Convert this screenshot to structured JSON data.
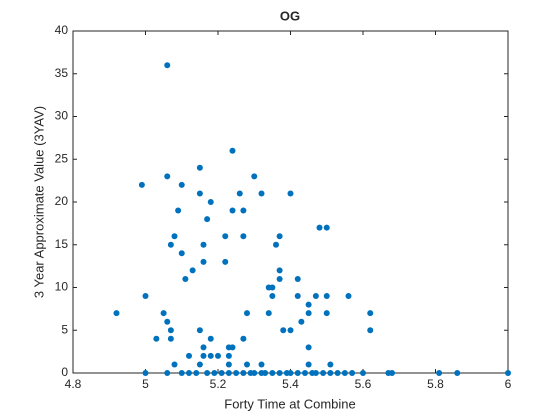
{
  "chart_data": {
    "type": "scatter",
    "title": "OG",
    "x_label": "Forty Time at Combine",
    "y_label": "3 Year Approximate Value (3YAV)",
    "color": "#0072bd",
    "xlim": [
      4.8,
      6
    ],
    "xticks": [
      4.8,
      5,
      5.2,
      5.4,
      5.6,
      5.8,
      6
    ],
    "ylim": [
      0,
      40
    ],
    "yticks": [
      0,
      5,
      10,
      15,
      20,
      25,
      30,
      35,
      40
    ],
    "x": [
      4.92,
      4.99,
      5.0,
      5.03,
      5.05,
      5.06,
      5.06,
      5.06,
      5.07,
      5.07,
      5.08,
      5.09,
      5.08,
      5.07,
      5.1,
      5.1,
      5.11,
      5.12,
      5.13,
      5.15,
      5.15,
      5.15,
      5.15,
      5.16,
      5.16,
      5.16,
      5.16,
      5.17,
      5.18,
      5.18,
      5.18,
      5.2,
      5.22,
      5.22,
      5.23,
      5.23,
      5.23,
      5.24,
      5.24,
      5.24,
      5.26,
      5.27,
      5.27,
      5.27,
      5.28,
      5.28,
      5.3,
      5.32,
      5.32,
      5.34,
      5.34,
      5.35,
      5.35,
      5.36,
      5.37,
      5.37,
      5.38,
      5.37,
      5.4,
      5.4,
      5.42,
      5.42,
      5.43,
      5.45,
      5.45,
      5.45,
      5.45,
      5.47,
      5.48,
      5.5,
      5.5,
      5.5,
      5.51,
      5.56,
      5.62,
      5.62,
      5.0,
      5.06,
      5.1,
      5.12,
      5.14,
      5.17,
      5.19,
      5.21,
      5.23,
      5.25,
      5.27,
      5.29,
      5.3,
      5.32,
      5.33,
      5.35,
      5.37,
      5.39,
      5.4,
      5.42,
      5.44,
      5.46,
      5.47,
      5.49,
      5.51,
      5.53,
      5.55,
      5.57,
      5.6,
      5.67,
      5.68,
      5.81,
      5.86,
      6.0
    ],
    "values": [
      7,
      22,
      9,
      4,
      7,
      36,
      6,
      23,
      5,
      15,
      16,
      19,
      1,
      4,
      22,
      14,
      11,
      2,
      12,
      24,
      21,
      1,
      5,
      15,
      13,
      3,
      2,
      18,
      20,
      4,
      2,
      2,
      16,
      13,
      3,
      2,
      1,
      26,
      19,
      3,
      21,
      4,
      19,
      16,
      7,
      1,
      23,
      21,
      1,
      7,
      10,
      10,
      9,
      15,
      16,
      12,
      5,
      11,
      21,
      5,
      11,
      9,
      6,
      8,
      3,
      1,
      7,
      9,
      17,
      9,
      17,
      7,
      1,
      9,
      7,
      5,
      0,
      0,
      0,
      0,
      0,
      0,
      0,
      0,
      0,
      0,
      0,
      0,
      0,
      0,
      0,
      0,
      0,
      0,
      0,
      0,
      0,
      0,
      0,
      0,
      0,
      0,
      0,
      0,
      0,
      0,
      0,
      0,
      0,
      0
    ]
  }
}
